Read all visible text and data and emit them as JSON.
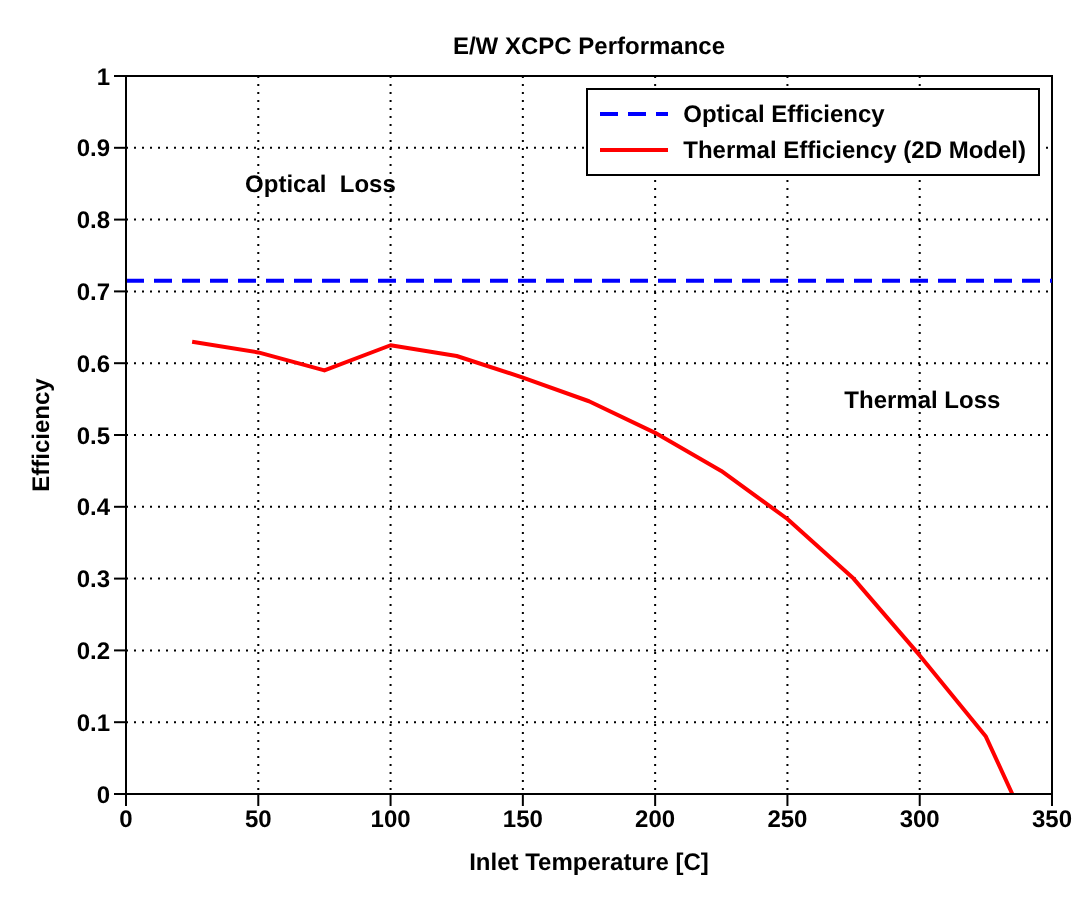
{
  "chart_data": {
    "type": "line",
    "title": "E/W XCPC Performance",
    "xlabel": "Inlet Temperature [C]",
    "ylabel": "Efficiency",
    "series": [
      {
        "name": "Optical Efficiency",
        "color": "#0000ff",
        "line_style": "dashed",
        "x": [
          0,
          350
        ],
        "values": [
          0.715,
          0.715
        ]
      },
      {
        "name": "Thermal Efficiency (2D Model)",
        "color": "#ff0000",
        "line_style": "solid",
        "x": [
          25,
          50,
          75,
          100,
          125,
          150,
          175,
          200,
          225,
          250,
          275,
          300,
          325,
          335
        ],
        "values": [
          0.63,
          0.615,
          0.59,
          0.625,
          0.61,
          0.58,
          0.547,
          0.503,
          0.45,
          0.383,
          0.3,
          0.193,
          0.08,
          0
        ]
      }
    ],
    "annotations": [
      "Optical  Loss",
      "Thermal Loss"
    ],
    "xlim": [
      0,
      350
    ],
    "xticks": [
      0,
      50,
      100,
      150,
      200,
      250,
      300,
      350
    ],
    "ylim": [
      0,
      1
    ],
    "yticks": [
      0,
      0.1,
      0.2,
      0.3,
      0.4,
      0.5,
      0.6,
      0.7,
      0.8,
      0.9,
      1
    ],
    "grid": true,
    "legend": "top right",
    "marker": "none"
  }
}
